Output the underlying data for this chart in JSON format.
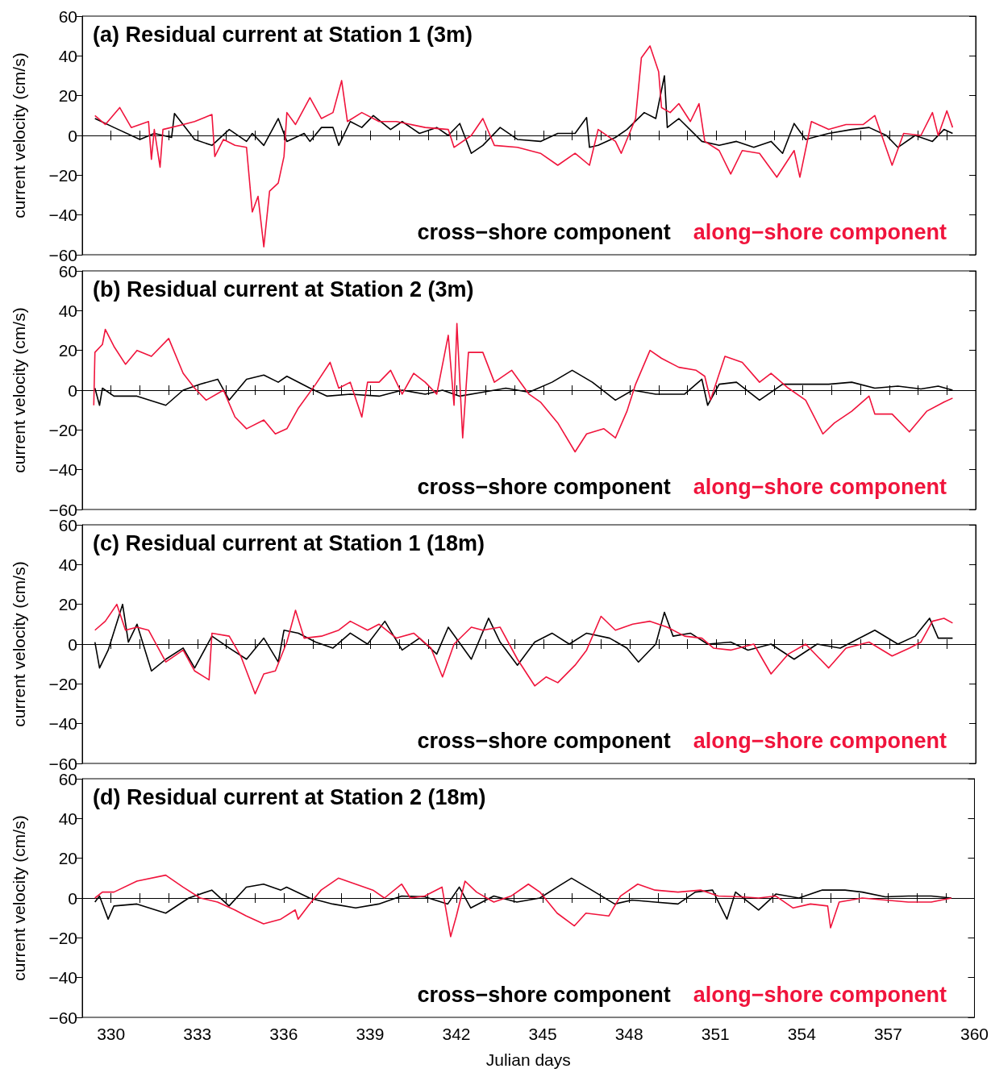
{
  "chart_data": [
    {
      "type": "line",
      "title": "(a) Residual current at Station 1 (3m)",
      "ylabel": "current velocity (cm/s)",
      "xlim": [
        329,
        360
      ],
      "xticks": [
        {
          "value": 329,
          "label": null
        },
        330,
        {
          "value": 331,
          "label": null
        },
        {
          "value": 332,
          "label": null
        },
        333,
        {
          "value": 334,
          "label": null
        },
        {
          "value": 335,
          "label": null
        },
        336,
        {
          "value": 337,
          "label": null
        },
        {
          "value": 338,
          "label": null
        },
        339,
        {
          "value": 340,
          "label": null
        },
        {
          "value": 341,
          "label": null
        },
        342,
        {
          "value": 343,
          "label": null
        },
        {
          "value": 344,
          "label": null
        },
        345,
        {
          "value": 346,
          "label": null
        },
        {
          "value": 347,
          "label": null
        },
        348,
        {
          "value": 349,
          "label": null
        },
        {
          "value": 350,
          "label": null
        },
        351,
        {
          "value": 352,
          "label": null
        },
        {
          "value": 353,
          "label": null
        },
        354,
        {
          "value": 355,
          "label": null
        },
        {
          "value": 356,
          "label": null
        },
        357,
        {
          "value": 358,
          "label": null
        },
        {
          "value": 359,
          "label": null
        },
        360
      ],
      "ylim": [
        -60,
        60
      ],
      "yticks": [
        -60,
        -40,
        -20,
        0,
        20,
        40,
        60
      ],
      "tick_labels": "y",
      "legend": "bottom right",
      "series": [
        {
          "name": "cross−shore component",
          "color": "#000000",
          "x": [
            329.44,
            330.1,
            331,
            331.5,
            332.1,
            332.2,
            332.9,
            333.5,
            334.1,
            334.7,
            334.9,
            335.3,
            335.8,
            336.1,
            336.7,
            336.9,
            337.3,
            337.7,
            337.9,
            338.3,
            338.7,
            339.1,
            339.7,
            340.1,
            340.7,
            341.3,
            341.7,
            342.1,
            342.5,
            342.9,
            343.5,
            344.1,
            344.9,
            345.5,
            346.1,
            346.5,
            346.6,
            346.9,
            347.5,
            347.9,
            348.5,
            348.9,
            349.2,
            349.3,
            349.7,
            350.5,
            351.1,
            351.7,
            352.3,
            352.9,
            353.3,
            353.7,
            354.1,
            354.9,
            355.7,
            356.3,
            356.9,
            357.3,
            357.9,
            358.5,
            358.9,
            359.2
          ],
          "values": [
            8.5,
            4,
            -2,
            1,
            -1,
            11,
            -2,
            -5,
            3,
            -3,
            1,
            -5,
            8.5,
            -3,
            1,
            -3,
            4,
            4,
            -5,
            7,
            4,
            10,
            3,
            7,
            1,
            4,
            0,
            6,
            -9,
            -5,
            4,
            -2,
            -3,
            1,
            1,
            9,
            -6,
            -5,
            -1,
            3,
            11.5,
            8.5,
            30,
            4,
            8.5,
            -3,
            -5,
            -3,
            -6,
            -3,
            -9,
            6,
            -2,
            1,
            3,
            4,
            0,
            -6,
            0,
            -3,
            3,
            1
          ]
        },
        {
          "name": "along−shore component",
          "color": "#f0143c",
          "x": [
            329.44,
            329.8,
            330.3,
            330.7,
            331.3,
            331.4,
            331.5,
            331.7,
            331.8,
            332.5,
            332.9,
            333.5,
            333.6,
            333.9,
            334.3,
            334.7,
            334.9,
            335.1,
            335.3,
            335.5,
            335.8,
            336.0,
            336.1,
            336.4,
            336.9,
            337.3,
            337.7,
            338.0,
            338.2,
            338.7,
            339.3,
            339.9,
            340.9,
            341.7,
            341.9,
            342.5,
            342.9,
            343.3,
            344.1,
            344.9,
            345.5,
            346.1,
            346.6,
            346.9,
            347.5,
            347.7,
            348.2,
            348.4,
            348.7,
            349.0,
            349.1,
            349.4,
            349.7,
            350.1,
            350.4,
            350.6,
            351.1,
            351.5,
            351.9,
            352.5,
            353.1,
            353.7,
            353.9,
            354.3,
            354.9,
            355.5,
            356.1,
            356.5,
            357.1,
            357.5,
            358.1,
            358.5,
            358.7,
            359.0,
            359.2
          ],
          "values": [
            10,
            5.5,
            14,
            4,
            7,
            -12,
            3,
            -16,
            3,
            5.5,
            7,
            10.5,
            -10.6,
            -2,
            -5,
            -6,
            -38.5,
            -30.6,
            -56,
            -28,
            -24,
            -10.6,
            11.5,
            5.5,
            19,
            8.5,
            11.5,
            27.6,
            7,
            11.5,
            7,
            7,
            4,
            3,
            -6,
            0,
            8.5,
            -5,
            -6,
            -9,
            -15,
            -9,
            -15,
            3,
            -3,
            -9,
            8.5,
            39,
            45,
            32,
            14,
            11.5,
            16,
            7,
            16,
            -3,
            -7.6,
            -19.4,
            -7.6,
            -9,
            -21,
            -7.6,
            -21,
            7,
            3,
            5.5,
            5.5,
            10,
            -15,
            1,
            0,
            11.5,
            0,
            12.4,
            4
          ]
        }
      ]
    },
    {
      "type": "line",
      "title": "(b) Residual current at Station 2 (3m)",
      "ylabel": "current velocity (cm/s)",
      "xlim": [
        329,
        360
      ],
      "xticks": [
        {
          "value": 329,
          "label": null
        },
        330,
        {
          "value": 331,
          "label": null
        },
        {
          "value": 332,
          "label": null
        },
        333,
        {
          "value": 334,
          "label": null
        },
        {
          "value": 335,
          "label": null
        },
        336,
        {
          "value": 337,
          "label": null
        },
        {
          "value": 338,
          "label": null
        },
        339,
        {
          "value": 340,
          "label": null
        },
        {
          "value": 341,
          "label": null
        },
        342,
        {
          "value": 343,
          "label": null
        },
        {
          "value": 344,
          "label": null
        },
        345,
        {
          "value": 346,
          "label": null
        },
        {
          "value": 347,
          "label": null
        },
        348,
        {
          "value": 349,
          "label": null
        },
        {
          "value": 350,
          "label": null
        },
        351,
        {
          "value": 352,
          "label": null
        },
        {
          "value": 353,
          "label": null
        },
        354,
        {
          "value": 355,
          "label": null
        },
        {
          "value": 356,
          "label": null
        },
        357,
        {
          "value": 358,
          "label": null
        },
        {
          "value": 359,
          "label": null
        },
        360
      ],
      "ylim": [
        -60,
        60
      ],
      "yticks": [
        -60,
        -40,
        -20,
        0,
        20,
        40,
        60
      ],
      "tick_labels": "y",
      "legend": "bottom right",
      "series": [
        {
          "name": "cross−shore component",
          "color": "#000000",
          "x": [
            329.44,
            329.6,
            329.7,
            330.1,
            330.9,
            331.9,
            332.5,
            333.1,
            333.7,
            334.1,
            334.7,
            335.3,
            335.8,
            336.1,
            336.9,
            337.5,
            338.3,
            339.3,
            340.1,
            340.9,
            341.5,
            342.1,
            342.9,
            343.7,
            344.5,
            345.3,
            346.0,
            346.7,
            347.5,
            348.1,
            348.9,
            349.9,
            350.5,
            350.7,
            351.1,
            351.7,
            352.5,
            353.3,
            354.1,
            354.9,
            355.7,
            356.5,
            357.3,
            358.1,
            358.7,
            359.2
          ],
          "values": [
            1,
            -7.6,
            1,
            -3,
            -3,
            -7.6,
            0,
            3,
            5.5,
            -5,
            5.5,
            7.6,
            4,
            7,
            1,
            -3,
            -2,
            -3,
            0,
            -2,
            0,
            -3,
            -1,
            1,
            -1,
            4,
            10,
            4,
            -5,
            0,
            -2,
            -2,
            5.5,
            -7.6,
            3,
            4,
            -5,
            3,
            3,
            3,
            4,
            1,
            2,
            0.6,
            2,
            0
          ]
        },
        {
          "name": "along−shore component",
          "color": "#f0143c",
          "x": [
            329.4,
            329.44,
            329.7,
            329.8,
            330.1,
            330.5,
            330.9,
            331.4,
            332.0,
            332.5,
            332.9,
            333.3,
            333.9,
            334.3,
            334.7,
            335.3,
            335.7,
            336.1,
            336.5,
            337.1,
            337.6,
            337.9,
            338.3,
            338.7,
            338.9,
            339.3,
            339.7,
            340.1,
            340.5,
            340.9,
            341.3,
            341.7,
            341.9,
            342.0,
            342.2,
            342.4,
            342.9,
            343.3,
            343.9,
            344.5,
            344.9,
            345.5,
            346.1,
            346.5,
            347.1,
            347.5,
            347.9,
            348.2,
            348.7,
            349.1,
            349.7,
            350.3,
            350.6,
            350.8,
            351.3,
            351.9,
            352.5,
            352.9,
            353.5,
            354.1,
            354.7,
            355.1,
            355.7,
            356.3,
            356.5,
            357.1,
            357.7,
            358.3,
            358.9,
            359.2
          ],
          "values": [
            -7.6,
            19,
            23,
            30.6,
            22,
            13,
            20,
            17,
            26,
            8.5,
            1,
            -5,
            0,
            -13.5,
            -19.4,
            -15,
            -22,
            -19.4,
            -9,
            3,
            14,
            1,
            4,
            -13.5,
            4,
            4,
            10,
            -2,
            8.5,
            4,
            -2,
            27.6,
            -7.6,
            33.5,
            -24,
            19,
            19,
            4,
            10,
            -2,
            -6,
            -16.5,
            -31,
            -22,
            -19.4,
            -24,
            -10.6,
            3,
            20,
            16,
            11.5,
            10,
            7,
            -5,
            17,
            14,
            4,
            8.5,
            1,
            -5,
            -22,
            -16.5,
            -10.6,
            -3,
            -12,
            -12,
            -21,
            -10.6,
            -6,
            -4
          ]
        }
      ]
    },
    {
      "type": "line",
      "title": "(c) Residual current at Station 1 (18m)",
      "ylabel": "current velocity (cm/s)",
      "xlim": [
        329,
        360
      ],
      "xticks": [
        {
          "value": 329,
          "label": null
        },
        330,
        {
          "value": 331,
          "label": null
        },
        {
          "value": 332,
          "label": null
        },
        333,
        {
          "value": 334,
          "label": null
        },
        {
          "value": 335,
          "label": null
        },
        336,
        {
          "value": 337,
          "label": null
        },
        {
          "value": 338,
          "label": null
        },
        339,
        {
          "value": 340,
          "label": null
        },
        {
          "value": 341,
          "label": null
        },
        342,
        {
          "value": 343,
          "label": null
        },
        {
          "value": 344,
          "label": null
        },
        345,
        {
          "value": 346,
          "label": null
        },
        {
          "value": 347,
          "label": null
        },
        348,
        {
          "value": 349,
          "label": null
        },
        {
          "value": 350,
          "label": null
        },
        351,
        {
          "value": 352,
          "label": null
        },
        {
          "value": 353,
          "label": null
        },
        354,
        {
          "value": 355,
          "label": null
        },
        {
          "value": 356,
          "label": null
        },
        357,
        {
          "value": 358,
          "label": null
        },
        {
          "value": 359,
          "label": null
        },
        360
      ],
      "ylim": [
        -60,
        60
      ],
      "yticks": [
        -60,
        -40,
        -20,
        0,
        20,
        40,
        60
      ],
      "tick_labels": "y",
      "legend": "bottom right",
      "series": [
        {
          "name": "cross−shore component",
          "color": "#000000",
          "x": [
            329.44,
            329.6,
            329.9,
            330.4,
            330.6,
            330.9,
            331.4,
            331.9,
            332.5,
            332.9,
            333.5,
            334.1,
            334.7,
            335.3,
            335.8,
            336.0,
            336.5,
            337.1,
            337.7,
            338.3,
            338.9,
            339.5,
            340.1,
            340.7,
            341.3,
            341.7,
            342.5,
            343.1,
            343.5,
            344.1,
            344.7,
            345.3,
            345.9,
            346.5,
            347.3,
            347.9,
            348.3,
            348.9,
            349.2,
            349.5,
            350.1,
            350.7,
            351.5,
            352.1,
            352.9,
            353.7,
            354.5,
            355.3,
            356.5,
            357.3,
            357.9,
            358.4,
            358.7,
            359.2
          ],
          "values": [
            1,
            -12,
            -3,
            20,
            1,
            10,
            -13.5,
            -7.6,
            -2,
            -12,
            4,
            -2,
            -7.6,
            3,
            -9,
            7,
            5.5,
            1,
            -2,
            5.5,
            0,
            11.5,
            -3,
            3,
            -5,
            8.5,
            -7.6,
            13,
            1,
            -10.6,
            1,
            5.5,
            0,
            5.5,
            3,
            -2,
            -9,
            0,
            16,
            4,
            5.5,
            0,
            1,
            -3,
            0,
            -7.6,
            0,
            -2,
            7,
            0,
            4,
            13,
            3,
            3
          ]
        },
        {
          "name": "along−shore component",
          "color": "#f0143c",
          "x": [
            329.44,
            329.8,
            330.2,
            330.5,
            330.9,
            331.3,
            331.9,
            332.5,
            332.9,
            333.4,
            333.5,
            334.1,
            334.5,
            335.0,
            335.3,
            335.7,
            336.1,
            336.4,
            336.7,
            337.3,
            337.9,
            338.3,
            338.9,
            339.3,
            339.9,
            340.5,
            341.1,
            341.5,
            341.9,
            342.5,
            342.9,
            343.5,
            344.1,
            344.7,
            345.1,
            345.5,
            346.1,
            346.5,
            347.0,
            347.5,
            348.1,
            348.7,
            349.3,
            349.9,
            350.5,
            350.9,
            351.5,
            352.3,
            352.9,
            353.5,
            354.1,
            354.9,
            355.5,
            356.3,
            357.1,
            357.7,
            358.1,
            358.5,
            358.9,
            359.2
          ],
          "values": [
            7,
            11.5,
            20,
            7,
            8.5,
            7,
            -9,
            -3,
            -13.5,
            -18,
            5.5,
            4,
            -6,
            -25,
            -15,
            -13.5,
            1,
            17,
            3,
            4,
            7,
            11.5,
            7,
            10,
            3,
            5.5,
            -2,
            -16.5,
            0,
            8.5,
            7,
            8.5,
            -7.6,
            -21,
            -16.5,
            -19.4,
            -10.6,
            -3,
            14,
            7,
            10,
            11.5,
            8.5,
            4,
            3,
            -2,
            -3,
            0,
            -15,
            -5,
            0,
            -12,
            -2,
            1,
            -6,
            -2,
            1,
            11.5,
            13,
            10.6
          ]
        }
      ]
    },
    {
      "type": "line",
      "title": "(d) Residual current at Station 2 (18m)",
      "xlabel": "Julian days",
      "ylabel": "current velocity (cm/s)",
      "xlim": [
        329,
        360
      ],
      "xticks": [
        {
          "value": 329,
          "label": null
        },
        330,
        {
          "value": 331,
          "label": null
        },
        {
          "value": 332,
          "label": null
        },
        333,
        {
          "value": 334,
          "label": null
        },
        {
          "value": 335,
          "label": null
        },
        336,
        {
          "value": 337,
          "label": null
        },
        {
          "value": 338,
          "label": null
        },
        339,
        {
          "value": 340,
          "label": null
        },
        {
          "value": 341,
          "label": null
        },
        342,
        {
          "value": 343,
          "label": null
        },
        {
          "value": 344,
          "label": null
        },
        345,
        {
          "value": 346,
          "label": null
        },
        {
          "value": 347,
          "label": null
        },
        348,
        {
          "value": 349,
          "label": null
        },
        {
          "value": 350,
          "label": null
        },
        351,
        {
          "value": 352,
          "label": null
        },
        {
          "value": 353,
          "label": null
        },
        354,
        {
          "value": 355,
          "label": null
        },
        {
          "value": 356,
          "label": null
        },
        357,
        {
          "value": 358,
          "label": null
        },
        {
          "value": 359,
          "label": null
        },
        360
      ],
      "ylim": [
        -60,
        60
      ],
      "yticks": [
        -60,
        -40,
        -20,
        0,
        20,
        40,
        60
      ],
      "legend": "bottom right",
      "series": [
        {
          "name": "cross−shore component",
          "color": "#000000",
          "x": [
            329.44,
            329.6,
            329.9,
            330.1,
            330.9,
            331.9,
            332.7,
            333.5,
            334.1,
            334.7,
            335.3,
            335.9,
            336.1,
            336.9,
            337.7,
            338.5,
            339.3,
            340.1,
            340.9,
            341.7,
            342.1,
            342.5,
            343.3,
            344.1,
            344.9,
            345.5,
            346.0,
            346.7,
            347.5,
            348.1,
            348.9,
            349.7,
            350.3,
            350.9,
            351.4,
            351.7,
            352.5,
            353.1,
            353.9,
            354.7,
            355.5,
            356.1,
            356.9,
            357.7,
            358.5,
            359.2
          ],
          "values": [
            -2,
            1,
            -10.6,
            -4,
            -3,
            -7.6,
            0,
            4,
            -4,
            5.5,
            7,
            4,
            5.5,
            0,
            -3,
            -5,
            -3,
            1,
            0.6,
            -3,
            5.5,
            -5,
            1,
            -2,
            0,
            5.5,
            10,
            4,
            -3,
            -1,
            -2,
            -3,
            3,
            4,
            -10.6,
            3,
            -6,
            2,
            0,
            4,
            4,
            3,
            0.6,
            1,
            1,
            0
          ]
        },
        {
          "name": "along−shore component",
          "color": "#f0143c",
          "x": [
            329.44,
            329.7,
            330.1,
            330.9,
            331.9,
            332.5,
            333.1,
            333.7,
            334.3,
            334.7,
            335.3,
            335.9,
            336.4,
            336.5,
            336.9,
            337.3,
            337.9,
            338.5,
            339.1,
            339.5,
            340.1,
            340.4,
            340.9,
            341.5,
            341.8,
            342.0,
            342.3,
            342.7,
            343.3,
            343.9,
            344.5,
            344.9,
            345.5,
            346.1,
            346.5,
            347.3,
            347.7,
            348.3,
            348.9,
            349.7,
            350.5,
            351.1,
            351.9,
            352.5,
            353.1,
            353.7,
            354.3,
            354.9,
            355.0,
            355.3,
            356.1,
            356.9,
            357.7,
            358.5,
            359.2
          ],
          "values": [
            0,
            3,
            3,
            8.5,
            11.5,
            5.5,
            0,
            -2,
            -6,
            -9,
            -13,
            -10.6,
            -6,
            -10.6,
            -3,
            4,
            10,
            7,
            4,
            0,
            7,
            0,
            1,
            5.5,
            -19.4,
            -9,
            8.5,
            3,
            -2,
            1,
            7,
            3,
            -7.6,
            -14,
            -7.6,
            -9,
            1,
            7,
            4,
            3,
            4,
            1,
            0.6,
            0,
            1,
            -5,
            -3,
            -4,
            -15,
            -2,
            0,
            -1,
            -2,
            -2,
            0
          ]
        }
      ]
    }
  ]
}
